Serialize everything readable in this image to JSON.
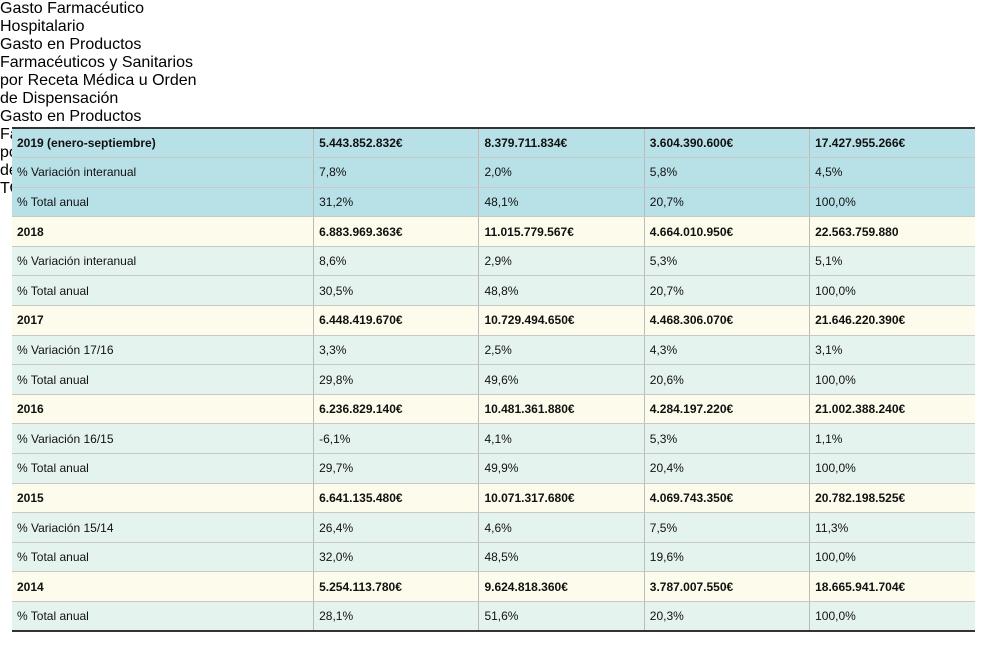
{
  "table": {
    "headers": [
      [
        "Gasto Farmacéutico",
        "Hospitalario"
      ],
      [
        "Gasto en Productos",
        "Farmacéuticos y Sanitarios",
        "por Receta Médica u Orden",
        "de Dispensación"
      ],
      [
        "Gasto en Productos",
        "Farmacéuticos y Sanitarios",
        "por Receta Médica u Orden",
        "de Dispensación"
      ],
      [
        "TOTAL"
      ]
    ],
    "groups": [
      {
        "label": "2019 (enero-septiembre)",
        "values": [
          "5.443.852.832€",
          "8.379.711.834€",
          "3.604.390.600€",
          "17.427.955.266€"
        ],
        "rows": [
          [
            "% Variación interanual",
            "7,8%",
            "2,0%",
            "5,8%",
            "4,5%"
          ],
          [
            "% Total anual",
            "31,2%",
            "48,1%",
            "20,7%",
            "100,0%"
          ]
        ]
      },
      {
        "label": "2018",
        "values": [
          "6.883.969.363€",
          "11.015.779.567€",
          "4.664.010.950€",
          "22.563.759.880"
        ],
        "rows": [
          [
            "% Variación interanual",
            "8,6%",
            "2,9%",
            "5,3%",
            "5,1%"
          ],
          [
            "% Total anual",
            "30,5%",
            "48,8%",
            "20,7%",
            "100,0%"
          ]
        ]
      },
      {
        "label": "2017",
        "values": [
          "6.448.419.670€",
          "10.729.494.650€",
          "4.468.306.070€",
          "21.646.220.390€"
        ],
        "rows": [
          [
            "% Variación 17/16",
            "3,3%",
            "2,5%",
            "4,3%",
            "3,1%"
          ],
          [
            "% Total anual",
            "29,8%",
            "49,6%",
            "20,6%",
            "100,0%"
          ]
        ]
      },
      {
        "label": "2016",
        "values": [
          "6.236.829.140€",
          "10.481.361.880€",
          "4.284.197.220€",
          "21.002.388.240€"
        ],
        "rows": [
          [
            "% Variación 16/15",
            "-6,1%",
            "4,1%",
            "5,3%",
            "1,1%"
          ],
          [
            "% Total anual",
            "29,7%",
            "49,9%",
            "20,4%",
            "100,0%"
          ]
        ]
      },
      {
        "label": "2015",
        "values": [
          "6.641.135.480€",
          "10.071.317.680€",
          "4.069.743.350€",
          "20.782.198.525€"
        ],
        "rows": [
          [
            "% Variación 15/14",
            "26,4%",
            "4,6%",
            "7,5%",
            "11,3%"
          ],
          [
            "% Total anual",
            "32,0%",
            "48,5%",
            "19,6%",
            "100,0%"
          ]
        ]
      },
      {
        "label": "2014",
        "values": [
          "5.254.113.780€",
          "9.624.818.360€",
          "3.787.007.550€",
          "18.665.941.704€"
        ],
        "rows": [
          [
            "% Total anual",
            "28,1%",
            "51,6%",
            "20,3%",
            "100,0%"
          ]
        ]
      }
    ]
  }
}
